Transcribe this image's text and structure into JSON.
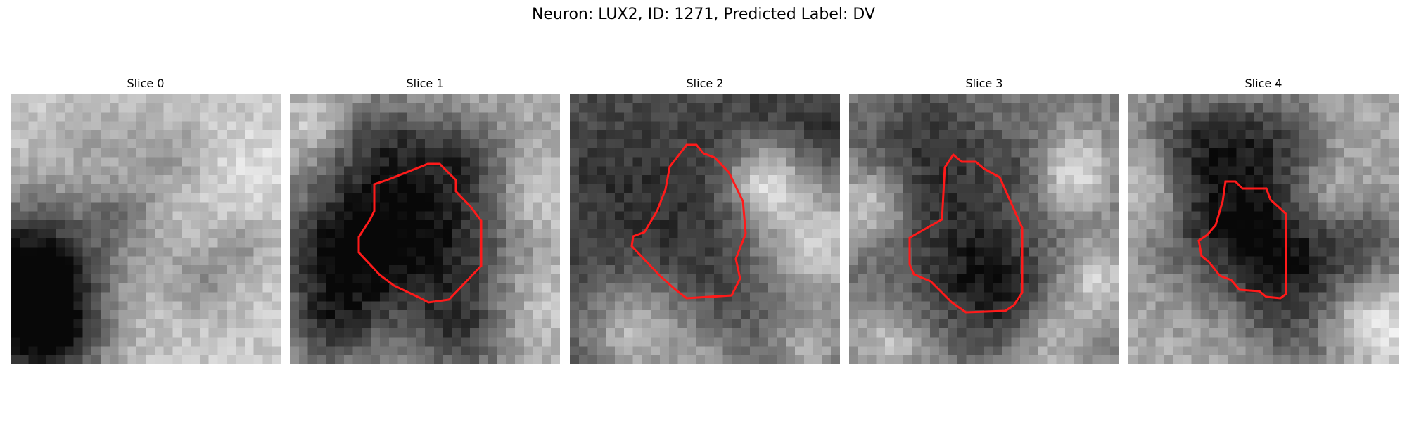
{
  "figure": {
    "title": "Neuron: LUX2, ID: 1271, Predicted Label: DV"
  },
  "panels": [
    {
      "title": "Slice 0",
      "has_contour": false
    },
    {
      "title": "Slice 1",
      "has_contour": true
    },
    {
      "title": "Slice 2",
      "has_contour": true
    },
    {
      "title": "Slice 3",
      "has_contour": true
    },
    {
      "title": "Slice 4",
      "has_contour": true
    }
  ],
  "colors": {
    "contour": "#ff1a1a"
  }
}
